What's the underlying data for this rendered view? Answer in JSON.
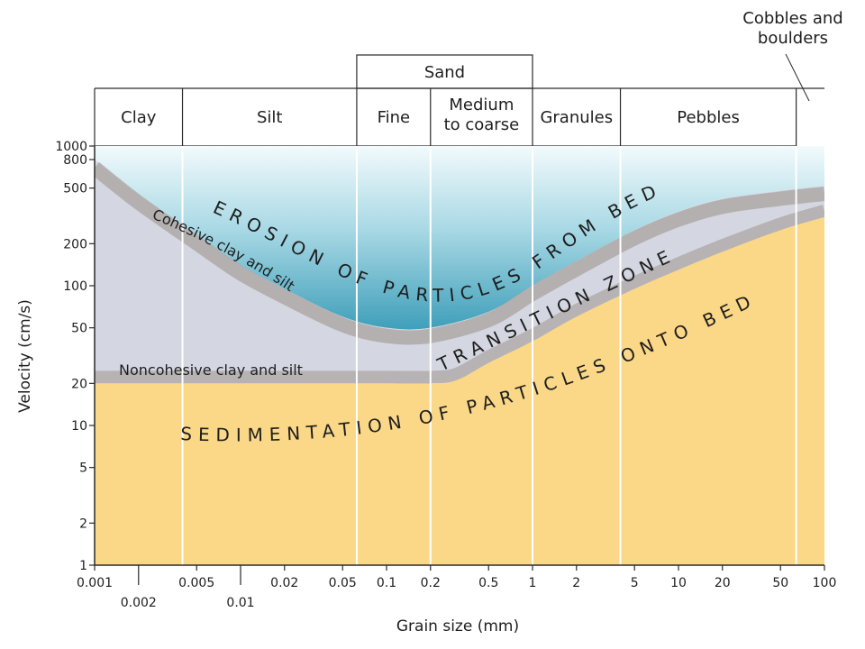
{
  "chart_data": {
    "type": "area",
    "title": "",
    "xlabel": "Grain size (mm)",
    "ylabel": "Velocity (cm/s)",
    "x_scale": "log",
    "y_scale": "log",
    "xlim": [
      0.001,
      100
    ],
    "ylim": [
      1,
      1000
    ],
    "x_ticks_top": [
      "0.001",
      "0.005",
      "0.02",
      "0.05",
      "0.1",
      "0.2",
      "0.5",
      "1",
      "2",
      "5",
      "10",
      "20",
      "50",
      "100"
    ],
    "x_ticks_bottom": [
      "0.002",
      "0.01"
    ],
    "y_ticks": [
      "1000",
      "800",
      "500",
      "200",
      "100",
      "50",
      "20",
      "10",
      "5",
      "2",
      "1"
    ],
    "grain_classes": [
      {
        "label": "Clay",
        "from": 0.001,
        "to": 0.004
      },
      {
        "label": "Silt",
        "from": 0.004,
        "to": 0.0625
      },
      {
        "label": "Fine",
        "from": 0.0625,
        "to": 0.2
      },
      {
        "label": "Medium\nto coarse",
        "from": 0.2,
        "to": 1
      },
      {
        "label": "Granules",
        "from": 1,
        "to": 4
      },
      {
        "label": "Pebbles",
        "from": 4,
        "to": 64
      }
    ],
    "sand_header": {
      "label": "Sand",
      "from": 0.0625,
      "to": 1
    },
    "cobbles_label": "Cobbles and\nboulders",
    "cobbles_from": 64,
    "series": [
      {
        "role": "erosion-threshold",
        "points": [
          [
            0.001,
            800
          ],
          [
            0.002,
            450
          ],
          [
            0.005,
            230
          ],
          [
            0.01,
            140
          ],
          [
            0.02,
            95
          ],
          [
            0.05,
            60
          ],
          [
            0.1,
            50
          ],
          [
            0.2,
            50
          ],
          [
            0.5,
            65
          ],
          [
            1,
            100
          ],
          [
            2,
            150
          ],
          [
            5,
            250
          ],
          [
            10,
            340
          ],
          [
            20,
            420
          ],
          [
            50,
            480
          ],
          [
            100,
            520
          ]
        ]
      },
      {
        "role": "sedimentation-threshold",
        "points": [
          [
            0.001,
            20
          ],
          [
            0.05,
            20
          ],
          [
            0.1,
            20
          ],
          [
            0.2,
            20
          ],
          [
            0.3,
            21
          ],
          [
            0.5,
            28
          ],
          [
            1,
            40
          ],
          [
            2,
            60
          ],
          [
            5,
            95
          ],
          [
            10,
            130
          ],
          [
            20,
            175
          ],
          [
            50,
            250
          ],
          [
            100,
            310
          ]
        ]
      }
    ],
    "zone_labels": {
      "erosion": "EROSION OF PARTICLES FROM BED",
      "transition": "TRANSITION ZONE",
      "sedimentation": "SEDIMENTATION OF PARTICLES ONTO BED"
    },
    "region_labels": {
      "cohesive": "Cohesive clay and silt",
      "noncohesive": "Noncohesive clay and silt"
    },
    "colors": {
      "erosion_top": "#eef8fb",
      "erosion_bottom": "#5fb4ca",
      "transition_fill": "#d4d7e1",
      "edge_band": "#9a9088",
      "sediment": "#fbd888",
      "gridline": "#ffffff",
      "frame": "#2a2a2a"
    }
  }
}
